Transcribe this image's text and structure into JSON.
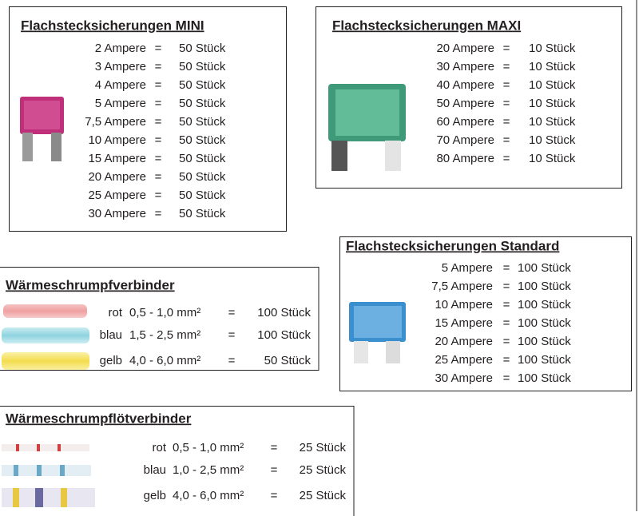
{
  "sections": [
    {
      "title": "Flachstecksicherungen MINI",
      "rows": [
        {
          "rating": "2 Ampere",
          "equals": "=",
          "quantity": "50 Stück"
        },
        {
          "rating": "3 Ampere",
          "equals": "=",
          "quantity": "50 Stück"
        },
        {
          "rating": "4 Ampere",
          "equals": "=",
          "quantity": "50 Stück"
        },
        {
          "rating": "5 Ampere",
          "equals": "=",
          "quantity": "50 Stück"
        },
        {
          "rating": "7,5 Ampere",
          "equals": "=",
          "quantity": "50 Stück"
        },
        {
          "rating": "10 Ampere",
          "equals": "=",
          "quantity": "50 Stück"
        },
        {
          "rating": "15 Ampere",
          "equals": "=",
          "quantity": "50 Stück"
        },
        {
          "rating": "20 Ampere",
          "equals": "=",
          "quantity": "50 Stück"
        },
        {
          "rating": "25 Ampere",
          "equals": "=",
          "quantity": "50 Stück"
        },
        {
          "rating": "30 Ampere",
          "equals": "=",
          "quantity": "50 Stück"
        }
      ]
    },
    {
      "title": "Flachstecksicherungen MAXI",
      "rows": [
        {
          "rating": "20 Ampere",
          "equals": "=",
          "quantity": "10 Stück"
        },
        {
          "rating": "30 Ampere",
          "equals": "=",
          "quantity": "10 Stück"
        },
        {
          "rating": "40 Ampere",
          "equals": "=",
          "quantity": "10 Stück"
        },
        {
          "rating": "50 Ampere",
          "equals": "=",
          "quantity": "10 Stück"
        },
        {
          "rating": "60 Ampere",
          "equals": "=",
          "quantity": "10 Stück"
        },
        {
          "rating": "70 Ampere",
          "equals": "=",
          "quantity": "10 Stück"
        },
        {
          "rating": "80 Ampere",
          "equals": "=",
          "quantity": "10 Stück"
        }
      ]
    },
    {
      "title": "Flachstecksicherungen Standard",
      "rows": [
        {
          "rating": "5 Ampere",
          "equals": "=",
          "quantity": "100 Stück"
        },
        {
          "rating": "7,5 Ampere",
          "equals": "=",
          "quantity": "100 Stück"
        },
        {
          "rating": "10 Ampere",
          "equals": "=",
          "quantity": "100 Stück"
        },
        {
          "rating": "15 Ampere",
          "equals": "=",
          "quantity": "100 Stück"
        },
        {
          "rating": "20 Ampere",
          "equals": "=",
          "quantity": "100 Stück"
        },
        {
          "rating": "25 Ampere",
          "equals": "=",
          "quantity": "100 Stück"
        },
        {
          "rating": "30 Ampere",
          "equals": "=",
          "quantity": "100 Stück"
        }
      ]
    },
    {
      "title": "Wärmeschrumpfverbinder",
      "rows": [
        {
          "color": "rot",
          "size": "0,5 - 1,0 mm²",
          "equals": "=",
          "quantity": "100 Stück"
        },
        {
          "color": "blau",
          "size": "1,5 - 2,5 mm²",
          "equals": "=",
          "quantity": "100 Stück"
        },
        {
          "color": "gelb",
          "size": "4,0 - 6,0 mm²",
          "equals": "=",
          "quantity": "50 Stück"
        }
      ]
    },
    {
      "title": "Wärmeschrumpflötverbinder",
      "rows": [
        {
          "color": "rot",
          "size": "0,5 - 1,0 mm²",
          "equals": "=",
          "quantity": "25 Stück"
        },
        {
          "color": "blau",
          "size": "1,0 - 2,5 mm²",
          "equals": "=",
          "quantity": "25 Stück"
        },
        {
          "color": "gelb",
          "size": "4,0 - 6,0 mm²",
          "equals": "=",
          "quantity": "25 Stück"
        }
      ]
    }
  ]
}
